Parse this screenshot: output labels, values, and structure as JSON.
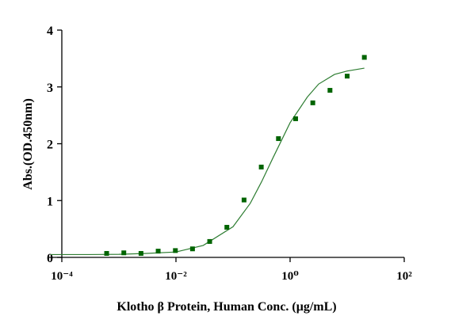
{
  "chart_data": {
    "type": "scatter",
    "xlabel": "Klotho β Protein, Human Conc. (μg/mL)",
    "ylabel": "Abs.(OD.450nm)",
    "xscale": "log",
    "xlim": [
      0.0001,
      100
    ],
    "ylim": [
      0,
      4
    ],
    "xticks": [
      {
        "value": 0.0001,
        "label": "10⁻⁴"
      },
      {
        "value": 0.01,
        "label": "10⁻²"
      },
      {
        "value": 1,
        "label": "10⁰"
      },
      {
        "value": 100,
        "label": "10²"
      }
    ],
    "yticks": [
      0,
      1,
      2,
      3,
      4
    ],
    "points": {
      "color": "#006400",
      "x": [
        0.00061,
        0.00122,
        0.00244,
        0.00488,
        0.00977,
        0.0195,
        0.039,
        0.078,
        0.156,
        0.3125,
        0.625,
        1.25,
        2.5,
        5,
        10,
        20
      ],
      "values": [
        0.07,
        0.08,
        0.07,
        0.11,
        0.12,
        0.15,
        0.28,
        0.53,
        1.01,
        1.59,
        2.09,
        2.44,
        2.72,
        2.94,
        3.19,
        3.52
      ]
    },
    "curve": {
      "color": "#2e7d32",
      "x": [
        6.3e-05,
        0.0003,
        0.001,
        0.003,
        0.01,
        0.03,
        0.1,
        0.2,
        0.316,
        0.5,
        1,
        2,
        3.16,
        6,
        10,
        20
      ],
      "values": [
        0.05,
        0.05,
        0.054,
        0.07,
        0.095,
        0.21,
        0.54,
        0.95,
        1.33,
        1.75,
        2.37,
        2.82,
        3.05,
        3.22,
        3.28,
        3.33
      ]
    }
  }
}
